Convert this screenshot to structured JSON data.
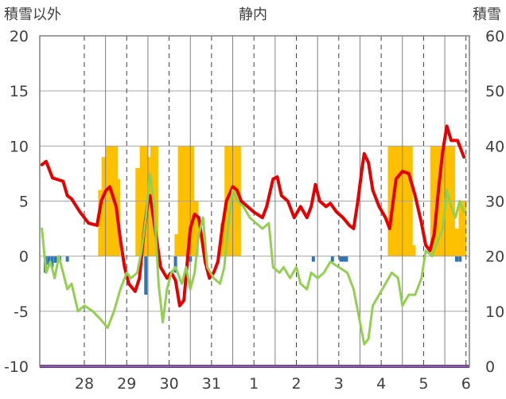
{
  "chart_data": {
    "type": "line",
    "title": "静内",
    "ylabel_left": "積雪以外",
    "ylabel_right": "積雪",
    "ylim_left": [
      -10,
      20
    ],
    "ylim_right": [
      0,
      60
    ],
    "y_ticks_left": [
      "20",
      "15",
      "10",
      "5",
      "0",
      "-5",
      "-10"
    ],
    "y_ticks_right": [
      "60",
      "50",
      "40",
      "30",
      "20",
      "10",
      "0"
    ],
    "x_labels": [
      "28",
      "29",
      "30",
      "31",
      "1",
      "2",
      "3",
      "4",
      "5",
      "6"
    ],
    "grid": true,
    "colors": {
      "temperature": "#e60000",
      "dewpoint": "#92d050",
      "snow_depth": "#ffc000",
      "precip": "#2e75b6",
      "baseline": "#7030a0"
    },
    "series": [
      {
        "name": "",
        "axis": "left",
        "color": "#e60000",
        "values": [
          [
            27.5,
            8.3
          ],
          [
            27.6,
            8.6
          ],
          [
            27.75,
            7.1
          ],
          [
            28.0,
            6.8
          ],
          [
            28.1,
            5.5
          ],
          [
            28.2,
            5.2
          ],
          [
            28.4,
            4.0
          ],
          [
            28.6,
            3.0
          ],
          [
            28.8,
            2.8
          ],
          [
            28.9,
            5.0
          ],
          [
            29.0,
            5.9
          ],
          [
            29.1,
            6.3
          ],
          [
            29.25,
            4.5
          ],
          [
            29.35,
            1.5
          ],
          [
            29.45,
            -1.0
          ],
          [
            29.55,
            -2.5
          ],
          [
            29.7,
            -3.2
          ],
          [
            29.8,
            -2.0
          ],
          [
            29.9,
            2.0
          ],
          [
            30.0,
            5.0
          ],
          [
            30.05,
            5.5
          ],
          [
            30.15,
            3.0
          ],
          [
            30.3,
            -1.0
          ],
          [
            30.45,
            -2.0
          ],
          [
            30.55,
            -1.5
          ],
          [
            30.65,
            -2.2
          ],
          [
            30.75,
            -4.5
          ],
          [
            30.85,
            -4.0
          ],
          [
            30.95,
            0.5
          ],
          [
            31.0,
            2.5
          ],
          [
            31.1,
            3.8
          ],
          [
            31.2,
            3.5
          ],
          [
            31.35,
            -0.5
          ],
          [
            31.45,
            -2.0
          ],
          [
            31.55,
            -1.5
          ],
          [
            31.65,
            -0.5
          ],
          [
            31.75,
            2.5
          ],
          [
            31.85,
            5.0
          ],
          [
            32.0,
            6.3
          ],
          [
            32.1,
            6.0
          ],
          [
            32.2,
            5.0
          ],
          [
            32.35,
            4.5
          ],
          [
            32.5,
            4.0
          ],
          [
            32.7,
            3.5
          ],
          [
            32.8,
            4.5
          ],
          [
            32.95,
            7.0
          ],
          [
            33.05,
            7.2
          ],
          [
            33.15,
            5.5
          ],
          [
            33.3,
            5.0
          ],
          [
            33.45,
            3.5
          ],
          [
            33.6,
            4.5
          ],
          [
            33.75,
            3.5
          ],
          [
            33.85,
            4.5
          ],
          [
            33.95,
            6.5
          ],
          [
            34.05,
            5.0
          ],
          [
            34.2,
            4.5
          ],
          [
            34.3,
            4.8
          ],
          [
            34.45,
            4.0
          ],
          [
            34.6,
            3.5
          ],
          [
            34.75,
            2.8
          ],
          [
            34.85,
            2.5
          ],
          [
            34.95,
            5.0
          ],
          [
            35.05,
            8.0
          ],
          [
            35.1,
            9.3
          ],
          [
            35.2,
            8.5
          ],
          [
            35.3,
            6.0
          ],
          [
            35.45,
            4.5
          ],
          [
            35.6,
            3.5
          ],
          [
            35.7,
            2.5
          ],
          [
            35.75,
            4.0
          ],
          [
            35.85,
            7.0
          ],
          [
            36.0,
            7.7
          ],
          [
            36.15,
            7.5
          ],
          [
            36.3,
            5.5
          ],
          [
            36.45,
            3.0
          ],
          [
            36.55,
            1.0
          ],
          [
            36.65,
            0.5
          ],
          [
            36.75,
            2.0
          ],
          [
            36.85,
            6.0
          ],
          [
            36.95,
            9.5
          ],
          [
            37.05,
            11.8
          ],
          [
            37.15,
            10.5
          ],
          [
            37.3,
            10.5
          ],
          [
            37.45,
            9.0
          ]
        ]
      },
      {
        "name": "",
        "axis": "left",
        "color": "#92d050",
        "values": [
          [
            27.5,
            2.5
          ],
          [
            27.6,
            -1.5
          ],
          [
            27.7,
            -0.5
          ],
          [
            27.8,
            -2.0
          ],
          [
            27.9,
            0.0
          ],
          [
            28.0,
            -1.5
          ],
          [
            28.1,
            -3.0
          ],
          [
            28.2,
            -2.5
          ],
          [
            28.35,
            -5.0
          ],
          [
            28.5,
            -4.5
          ],
          [
            28.7,
            -5.0
          ],
          [
            28.9,
            -5.8
          ],
          [
            29.05,
            -6.5
          ],
          [
            29.2,
            -5.0
          ],
          [
            29.35,
            -3.0
          ],
          [
            29.5,
            -1.5
          ],
          [
            29.6,
            -2.0
          ],
          [
            29.75,
            -1.5
          ],
          [
            29.85,
            0.5
          ],
          [
            29.95,
            3.5
          ],
          [
            30.05,
            7.5
          ],
          [
            30.15,
            4.5
          ],
          [
            30.25,
            -2.5
          ],
          [
            30.35,
            -6.0
          ],
          [
            30.45,
            -3.0
          ],
          [
            30.55,
            -1.5
          ],
          [
            30.65,
            -1.0
          ],
          [
            30.8,
            -2.5
          ],
          [
            30.9,
            -1.0
          ],
          [
            31.0,
            -3.0
          ],
          [
            31.1,
            -1.5
          ],
          [
            31.2,
            2.0
          ],
          [
            31.3,
            3.5
          ],
          [
            31.4,
            -1.0
          ],
          [
            31.55,
            -2.0
          ],
          [
            31.7,
            -2.5
          ],
          [
            31.8,
            -1.0
          ],
          [
            31.9,
            3.0
          ],
          [
            32.0,
            6.0
          ],
          [
            32.1,
            5.0
          ],
          [
            32.25,
            4.5
          ],
          [
            32.4,
            3.5
          ],
          [
            32.55,
            3.0
          ],
          [
            32.7,
            2.5
          ],
          [
            32.85,
            3.0
          ],
          [
            32.95,
            -1.0
          ],
          [
            33.1,
            -1.5
          ],
          [
            33.2,
            -1.0
          ],
          [
            33.35,
            -2.0
          ],
          [
            33.5,
            -1.0
          ],
          [
            33.6,
            -2.5
          ],
          [
            33.75,
            -3.0
          ],
          [
            33.85,
            -1.5
          ],
          [
            34.0,
            -2.0
          ],
          [
            34.15,
            -1.5
          ],
          [
            34.3,
            -0.5
          ],
          [
            34.5,
            -1.0
          ],
          [
            34.7,
            -1.5
          ],
          [
            34.85,
            -3.0
          ],
          [
            35.0,
            -6.0
          ],
          [
            35.1,
            -8.0
          ],
          [
            35.2,
            -7.5
          ],
          [
            35.3,
            -4.5
          ],
          [
            35.45,
            -3.5
          ],
          [
            35.6,
            -2.5
          ],
          [
            35.75,
            -1.5
          ],
          [
            35.9,
            -2.0
          ],
          [
            36.0,
            -4.5
          ],
          [
            36.15,
            -3.5
          ],
          [
            36.3,
            -3.5
          ],
          [
            36.45,
            -2.0
          ],
          [
            36.55,
            0.5
          ],
          [
            36.7,
            0.0
          ],
          [
            36.85,
            1.5
          ],
          [
            36.95,
            2.5
          ],
          [
            37.05,
            6.0
          ],
          [
            37.15,
            4.5
          ],
          [
            37.25,
            3.5
          ],
          [
            37.35,
            5.0
          ],
          [
            37.45,
            4.0
          ]
        ]
      },
      {
        "name": "",
        "axis": "right",
        "color": "#ffc000",
        "type": "bar",
        "values": [
          [
            28.92,
            32
          ],
          [
            29.0,
            38
          ],
          [
            29.1,
            40
          ],
          [
            29.2,
            40
          ],
          [
            29.25,
            34
          ],
          [
            29.8,
            36
          ],
          [
            29.9,
            40
          ],
          [
            30.02,
            38
          ],
          [
            30.15,
            40
          ],
          [
            30.72,
            24
          ],
          [
            30.8,
            40
          ],
          [
            30.9,
            40
          ],
          [
            31.0,
            40
          ],
          [
            31.1,
            30
          ],
          [
            31.8,
            26
          ],
          [
            31.9,
            40
          ],
          [
            32.0,
            40
          ],
          [
            32.1,
            40
          ],
          [
            35.75,
            40
          ],
          [
            35.85,
            40
          ],
          [
            35.95,
            40
          ],
          [
            36.05,
            40
          ],
          [
            36.15,
            40
          ],
          [
            36.22,
            22
          ],
          [
            36.75,
            40
          ],
          [
            36.85,
            40
          ],
          [
            36.95,
            40
          ],
          [
            37.05,
            40
          ],
          [
            37.15,
            40
          ],
          [
            37.3,
            25
          ],
          [
            37.42,
            30
          ]
        ]
      },
      {
        "name": "",
        "axis": "left",
        "color": "#2e75b6",
        "type": "bar",
        "values": [
          [
            27.58,
            -1.5
          ],
          [
            27.66,
            -0.8
          ],
          [
            27.74,
            -1.0
          ],
          [
            27.82,
            -0.6
          ],
          [
            27.92,
            -0.5
          ],
          [
            28.1,
            -0.5
          ],
          [
            29.95,
            -3.5
          ],
          [
            30.65,
            -1.5
          ],
          [
            31.0,
            -0.5
          ],
          [
            33.9,
            -0.5
          ],
          [
            34.35,
            -0.5
          ],
          [
            34.55,
            -0.5
          ],
          [
            34.62,
            -0.5
          ],
          [
            34.68,
            -0.5
          ],
          [
            37.28,
            -0.5
          ],
          [
            37.36,
            -0.5
          ]
        ]
      }
    ]
  }
}
